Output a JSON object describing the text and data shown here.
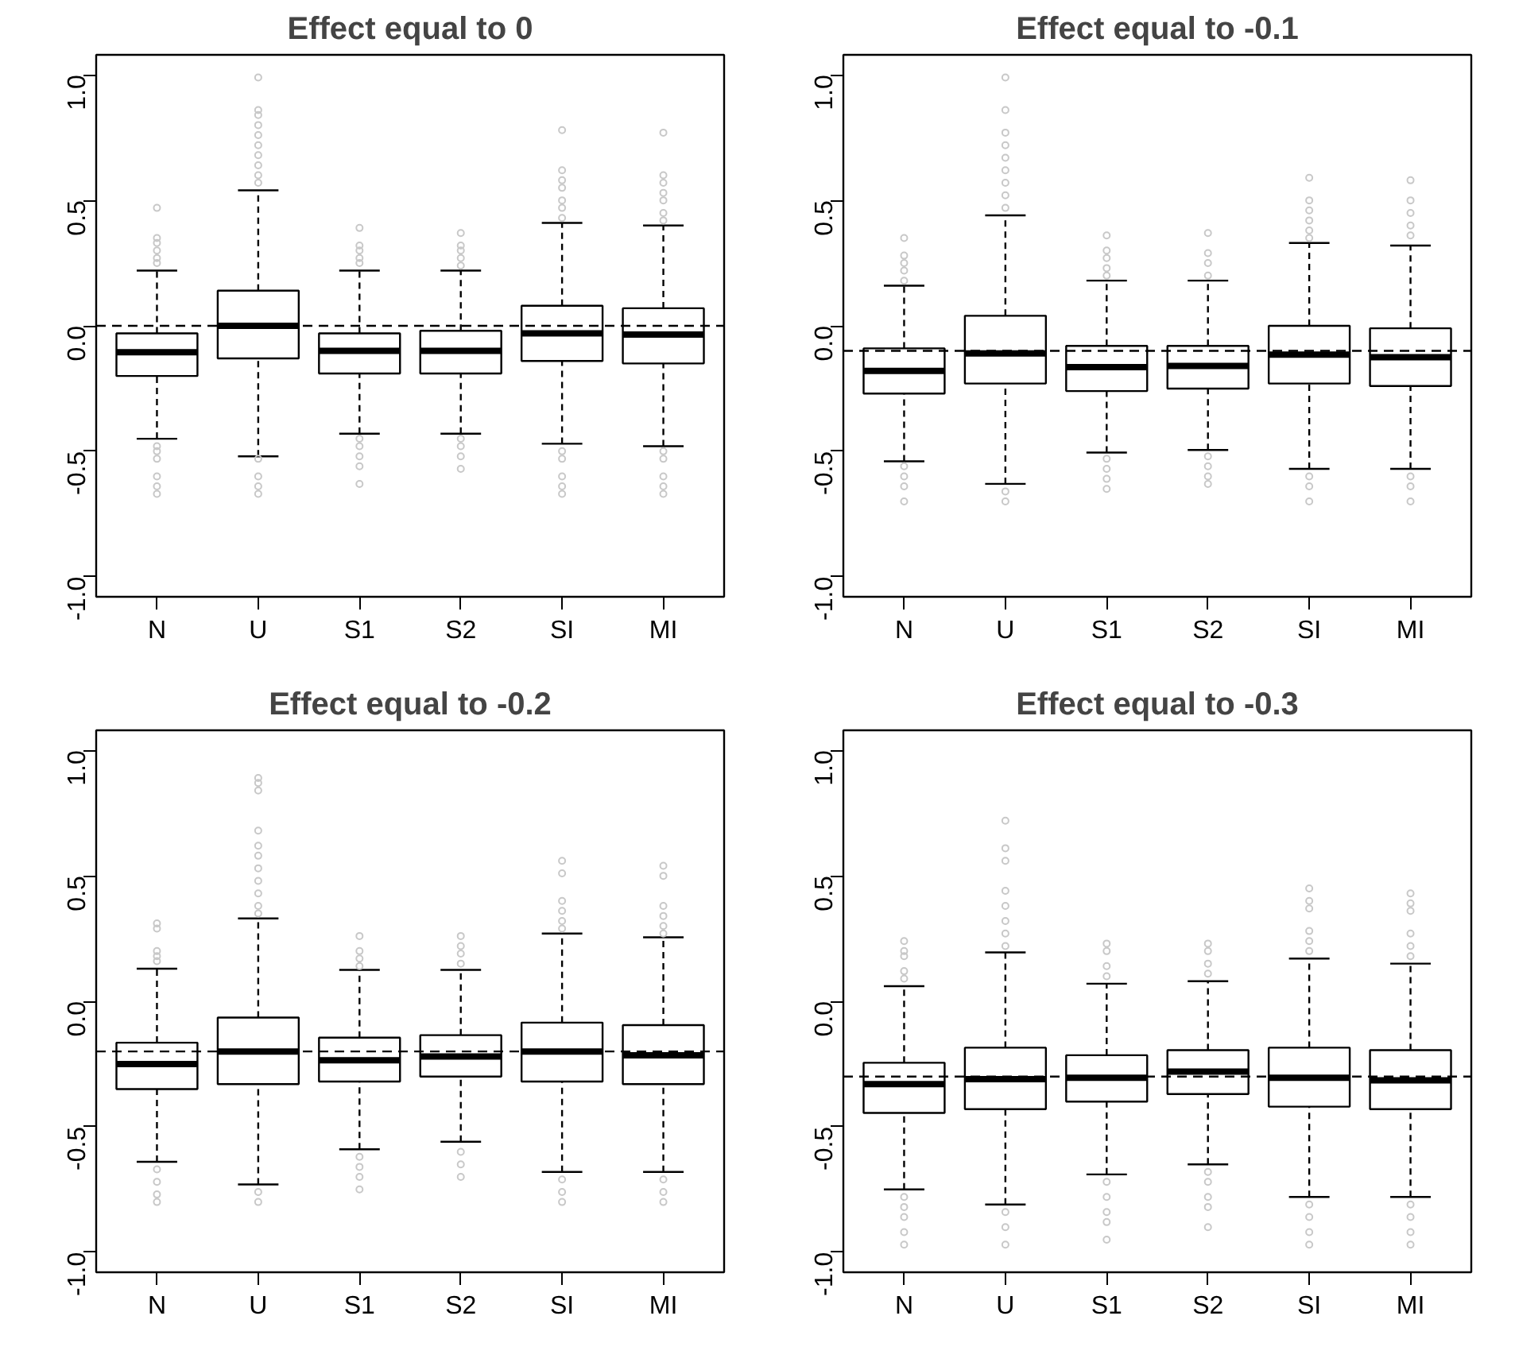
{
  "chart_data": [
    {
      "type": "box",
      "title": "Effect equal to 0",
      "categories": [
        "N",
        "U",
        "S1",
        "S2",
        "SI",
        "MI"
      ],
      "ylim": [
        -1.08,
        1.08
      ],
      "yticks": [
        {
          "value": -1,
          "label": "-1.0"
        },
        {
          "value": -0.5,
          "label": "-0.5"
        },
        {
          "value": 0,
          "label": "0.0"
        },
        {
          "value": 0.5,
          "label": "0.5"
        },
        {
          "value": 1,
          "label": "1.0"
        }
      ],
      "grid": false,
      "ref_lines": [
        {
          "axis": "y",
          "value": 0,
          "line_style": "dashed"
        }
      ],
      "boxes": [
        {
          "low": -0.45,
          "q1": -0.2,
          "median": -0.105,
          "q3": -0.03,
          "high": 0.22,
          "outliers": [
            0.47,
            0.35,
            0.33,
            0.3,
            0.27,
            0.25,
            -0.48,
            -0.5,
            -0.53,
            -0.6,
            -0.64,
            -0.67
          ]
        },
        {
          "low": -0.52,
          "q1": -0.13,
          "median": 0.0,
          "q3": 0.14,
          "high": 0.54,
          "outliers": [
            0.99,
            0.86,
            0.84,
            0.8,
            0.76,
            0.72,
            0.68,
            0.64,
            0.6,
            0.57,
            -0.53,
            -0.6,
            -0.64,
            -0.67
          ]
        },
        {
          "low": -0.43,
          "q1": -0.19,
          "median": -0.1,
          "q3": -0.03,
          "high": 0.22,
          "outliers": [
            0.39,
            0.32,
            0.3,
            0.27,
            0.25,
            -0.45,
            -0.48,
            -0.52,
            -0.56,
            -0.63
          ]
        },
        {
          "low": -0.43,
          "q1": -0.19,
          "median": -0.1,
          "q3": -0.02,
          "high": 0.22,
          "outliers": [
            0.37,
            0.32,
            0.3,
            0.27,
            0.24,
            -0.45,
            -0.48,
            -0.52,
            -0.57
          ]
        },
        {
          "low": -0.47,
          "q1": -0.14,
          "median": -0.03,
          "q3": 0.08,
          "high": 0.41,
          "outliers": [
            0.78,
            0.62,
            0.58,
            0.55,
            0.5,
            0.47,
            0.43,
            -0.5,
            -0.53,
            -0.6,
            -0.64,
            -0.67
          ]
        },
        {
          "low": -0.48,
          "q1": -0.15,
          "median": -0.035,
          "q3": 0.07,
          "high": 0.4,
          "outliers": [
            0.77,
            0.6,
            0.57,
            0.53,
            0.5,
            0.45,
            0.42,
            -0.5,
            -0.53,
            -0.6,
            -0.64,
            -0.67
          ]
        }
      ]
    },
    {
      "type": "box",
      "title": "Effect equal to -0.1",
      "categories": [
        "N",
        "U",
        "S1",
        "S2",
        "SI",
        "MI"
      ],
      "ylim": [
        -1.08,
        1.08
      ],
      "yticks": [
        {
          "value": -1,
          "label": "-1.0"
        },
        {
          "value": -0.5,
          "label": "-0.5"
        },
        {
          "value": 0,
          "label": "0.0"
        },
        {
          "value": 0.5,
          "label": "0.5"
        },
        {
          "value": 1,
          "label": "1.0"
        }
      ],
      "grid": false,
      "ref_lines": [
        {
          "axis": "y",
          "value": -0.1,
          "line_style": "dashed"
        }
      ],
      "boxes": [
        {
          "low": -0.54,
          "q1": -0.27,
          "median": -0.18,
          "q3": -0.09,
          "high": 0.16,
          "outliers": [
            0.35,
            0.28,
            0.25,
            0.22,
            0.18,
            -0.56,
            -0.6,
            -0.64,
            -0.7
          ]
        },
        {
          "low": -0.63,
          "q1": -0.23,
          "median": -0.11,
          "q3": 0.04,
          "high": 0.44,
          "outliers": [
            0.99,
            0.86,
            0.77,
            0.72,
            0.67,
            0.62,
            0.57,
            0.52,
            0.47,
            -0.66,
            -0.7
          ]
        },
        {
          "low": -0.505,
          "q1": -0.26,
          "median": -0.165,
          "q3": -0.08,
          "high": 0.18,
          "outliers": [
            0.36,
            0.3,
            0.27,
            0.23,
            0.2,
            -0.53,
            -0.57,
            -0.61,
            -0.65
          ]
        },
        {
          "low": -0.495,
          "q1": -0.25,
          "median": -0.16,
          "q3": -0.08,
          "high": 0.18,
          "outliers": [
            0.37,
            0.29,
            0.25,
            0.2,
            -0.52,
            -0.56,
            -0.6,
            -0.63
          ]
        },
        {
          "low": -0.57,
          "q1": -0.23,
          "median": -0.115,
          "q3": 0.0,
          "high": 0.33,
          "outliers": [
            0.59,
            0.5,
            0.46,
            0.42,
            0.38,
            0.35,
            -0.6,
            -0.64,
            -0.7
          ]
        },
        {
          "low": -0.57,
          "q1": -0.24,
          "median": -0.125,
          "q3": -0.01,
          "high": 0.32,
          "outliers": [
            0.58,
            0.5,
            0.45,
            0.4,
            0.36,
            -0.6,
            -0.64,
            -0.7
          ]
        }
      ]
    },
    {
      "type": "box",
      "title": "Effect equal to -0.2",
      "categories": [
        "N",
        "U",
        "S1",
        "S2",
        "SI",
        "MI"
      ],
      "ylim": [
        -1.08,
        1.08
      ],
      "yticks": [
        {
          "value": -1,
          "label": "-1.0"
        },
        {
          "value": -0.5,
          "label": "-0.5"
        },
        {
          "value": 0,
          "label": "0.0"
        },
        {
          "value": 0.5,
          "label": "0.5"
        },
        {
          "value": 1,
          "label": "1.0"
        }
      ],
      "grid": false,
      "ref_lines": [
        {
          "axis": "y",
          "value": -0.2,
          "line_style": "dashed"
        }
      ],
      "boxes": [
        {
          "low": -0.64,
          "q1": -0.35,
          "median": -0.25,
          "q3": -0.165,
          "high": 0.13,
          "outliers": [
            0.31,
            0.29,
            0.2,
            0.18,
            0.16,
            -0.67,
            -0.72,
            -0.77,
            -0.8
          ]
        },
        {
          "low": -0.73,
          "q1": -0.33,
          "median": -0.2,
          "q3": -0.065,
          "high": 0.33,
          "outliers": [
            0.89,
            0.87,
            0.84,
            0.68,
            0.62,
            0.58,
            0.53,
            0.48,
            0.43,
            0.38,
            0.35,
            -0.76,
            -0.8
          ]
        },
        {
          "low": -0.59,
          "q1": -0.32,
          "median": -0.235,
          "q3": -0.145,
          "high": 0.125,
          "outliers": [
            0.26,
            0.2,
            0.17,
            0.14,
            -0.62,
            -0.66,
            -0.7,
            -0.75
          ]
        },
        {
          "low": -0.56,
          "q1": -0.3,
          "median": -0.22,
          "q3": -0.135,
          "high": 0.125,
          "outliers": [
            0.26,
            0.22,
            0.19,
            0.15,
            -0.6,
            -0.65,
            -0.7
          ]
        },
        {
          "low": -0.68,
          "q1": -0.32,
          "median": -0.2,
          "q3": -0.085,
          "high": 0.27,
          "outliers": [
            0.56,
            0.51,
            0.4,
            0.36,
            0.32,
            0.29,
            -0.71,
            -0.76,
            -0.8
          ]
        },
        {
          "low": -0.68,
          "q1": -0.33,
          "median": -0.215,
          "q3": -0.095,
          "high": 0.255,
          "outliers": [
            0.54,
            0.5,
            0.38,
            0.34,
            0.3,
            0.27,
            -0.71,
            -0.76,
            -0.8
          ]
        }
      ]
    },
    {
      "type": "box",
      "title": "Effect equal to -0.3",
      "categories": [
        "N",
        "U",
        "S1",
        "S2",
        "SI",
        "MI"
      ],
      "ylim": [
        -1.08,
        1.08
      ],
      "yticks": [
        {
          "value": -1,
          "label": "-1.0"
        },
        {
          "value": -0.5,
          "label": "-0.5"
        },
        {
          "value": 0,
          "label": "0.0"
        },
        {
          "value": 0.5,
          "label": "0.5"
        },
        {
          "value": 1,
          "label": "1.0"
        }
      ],
      "grid": false,
      "ref_lines": [
        {
          "axis": "y",
          "value": -0.3,
          "line_style": "dashed"
        }
      ],
      "boxes": [
        {
          "low": -0.75,
          "q1": -0.445,
          "median": -0.33,
          "q3": -0.245,
          "high": 0.06,
          "outliers": [
            0.24,
            0.2,
            0.18,
            0.12,
            0.09,
            -0.78,
            -0.82,
            -0.86,
            -0.92,
            -0.97
          ]
        },
        {
          "low": -0.81,
          "q1": -0.43,
          "median": -0.31,
          "q3": -0.185,
          "high": 0.195,
          "outliers": [
            0.72,
            0.61,
            0.56,
            0.44,
            0.38,
            0.32,
            0.27,
            0.22,
            -0.84,
            -0.9,
            -0.97
          ]
        },
        {
          "low": -0.69,
          "q1": -0.4,
          "median": -0.305,
          "q3": -0.215,
          "high": 0.07,
          "outliers": [
            0.23,
            0.2,
            0.14,
            0.1,
            -0.72,
            -0.78,
            -0.84,
            -0.88,
            -0.95
          ]
        },
        {
          "low": -0.65,
          "q1": -0.37,
          "median": -0.28,
          "q3": -0.195,
          "high": 0.08,
          "outliers": [
            0.23,
            0.2,
            0.15,
            0.11,
            -0.68,
            -0.72,
            -0.78,
            -0.82,
            -0.9
          ]
        },
        {
          "low": -0.78,
          "q1": -0.42,
          "median": -0.305,
          "q3": -0.185,
          "high": 0.17,
          "outliers": [
            0.45,
            0.4,
            0.37,
            0.28,
            0.24,
            0.2,
            -0.81,
            -0.86,
            -0.92,
            -0.97
          ]
        },
        {
          "low": -0.78,
          "q1": -0.43,
          "median": -0.315,
          "q3": -0.195,
          "high": 0.15,
          "outliers": [
            0.43,
            0.39,
            0.36,
            0.27,
            0.22,
            0.18,
            -0.81,
            -0.86,
            -0.92,
            -0.97
          ]
        }
      ]
    }
  ]
}
